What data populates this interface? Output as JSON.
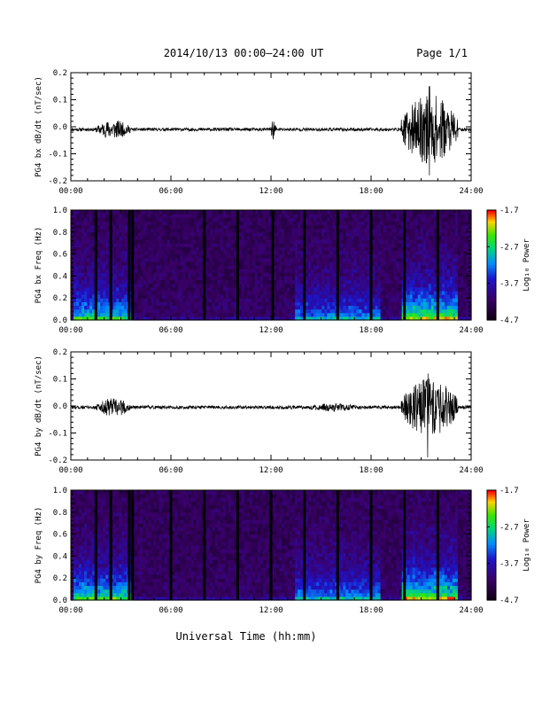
{
  "header": {
    "title": "2014/10/13  00:00–24:00 UT",
    "page": "Page 1/1"
  },
  "footer": {
    "xlabel": "Universal Time (hh:mm)"
  },
  "colorbar": {
    "label": "Log₁₀ Power",
    "ticks": [
      "-1.7",
      "-2.7",
      "-3.7",
      "-4.7"
    ]
  },
  "chart_data": [
    {
      "type": "line",
      "title": "",
      "xlabel": "",
      "ylabel": "PG4 bx dB/dt (nT/sec)",
      "xlim": [
        0,
        24
      ],
      "ylim": [
        -0.2,
        0.2
      ],
      "xticks": [
        "00:00",
        "06:00",
        "12:00",
        "18:00",
        "24:00"
      ],
      "yticks": [
        "0.2",
        "0.1",
        "0.0",
        "-0.1",
        "-0.2"
      ],
      "baseline": -0.01,
      "bursts": [
        {
          "t0": 1.5,
          "t1": 3.6,
          "amp": 0.035
        },
        {
          "t0": 12.0,
          "t1": 12.3,
          "amp": 0.04
        },
        {
          "t0": 19.8,
          "t1": 23.2,
          "amp": 0.13
        }
      ],
      "peak": {
        "x": 21.5,
        "ymax": 0.15,
        "ymin": -0.18
      }
    },
    {
      "type": "heatmap",
      "title": "",
      "xlabel": "",
      "ylabel": "PG4 bx Freq (Hz)",
      "xlim": [
        0,
        24
      ],
      "ylim": [
        0.0,
        1.0
      ],
      "xticks": [
        "00:00",
        "06:00",
        "12:00",
        "18:00",
        "24:00"
      ],
      "yticks": [
        "1.0",
        "0.8",
        "0.6",
        "0.4",
        "0.2",
        "0.0"
      ],
      "zlim": [
        -4.7,
        -1.7
      ],
      "zlabel": "Log10 Power",
      "gaps_hours": [
        1.5,
        2.4,
        3.5,
        3.7,
        8.0,
        10.0,
        12.1,
        14.0,
        16.0,
        18.0,
        20.0,
        22.0
      ],
      "active_intervals": [
        {
          "t0": 0.2,
          "t1": 3.7,
          "level": 0.75
        },
        {
          "t0": 13.5,
          "t1": 18.5,
          "level": 0.55
        },
        {
          "t0": 19.8,
          "t1": 23.2,
          "level": 0.95
        }
      ]
    },
    {
      "type": "line",
      "title": "",
      "xlabel": "",
      "ylabel": "PG4 by dB/dt (nT/sec)",
      "xlim": [
        0,
        24
      ],
      "ylim": [
        -0.2,
        0.2
      ],
      "xticks": [
        "00:00",
        "06:00",
        "12:00",
        "18:00",
        "24:00"
      ],
      "yticks": [
        "0.2",
        "0.1",
        "0.0",
        "-0.1",
        "-0.2"
      ],
      "baseline": -0.005,
      "bursts": [
        {
          "t0": 1.5,
          "t1": 3.6,
          "amp": 0.035
        },
        {
          "t0": 14.0,
          "t1": 17.5,
          "amp": 0.015
        },
        {
          "t0": 19.8,
          "t1": 23.2,
          "amp": 0.11
        }
      ],
      "peak": {
        "x": 21.4,
        "ymax": 0.12,
        "ymin": -0.19
      }
    },
    {
      "type": "heatmap",
      "title": "",
      "xlabel": "",
      "ylabel": "PG4 by Freq (Hz)",
      "xlim": [
        0,
        24
      ],
      "ylim": [
        0.0,
        1.0
      ],
      "xticks": [
        "00:00",
        "06:00",
        "12:00",
        "18:00",
        "24:00"
      ],
      "yticks": [
        "1.0",
        "0.8",
        "0.6",
        "0.4",
        "0.2",
        "0.0"
      ],
      "zlim": [
        -4.7,
        -1.7
      ],
      "zlabel": "Log10 Power",
      "gaps_hours": [
        1.5,
        2.4,
        3.5,
        3.7,
        6.0,
        8.0,
        10.0,
        12.0,
        14.0,
        16.0,
        18.0,
        20.0,
        22.0
      ],
      "active_intervals": [
        {
          "t0": 0.2,
          "t1": 3.7,
          "level": 0.8
        },
        {
          "t0": 13.5,
          "t1": 18.5,
          "level": 0.55
        },
        {
          "t0": 19.8,
          "t1": 23.2,
          "level": 0.95
        }
      ]
    }
  ]
}
